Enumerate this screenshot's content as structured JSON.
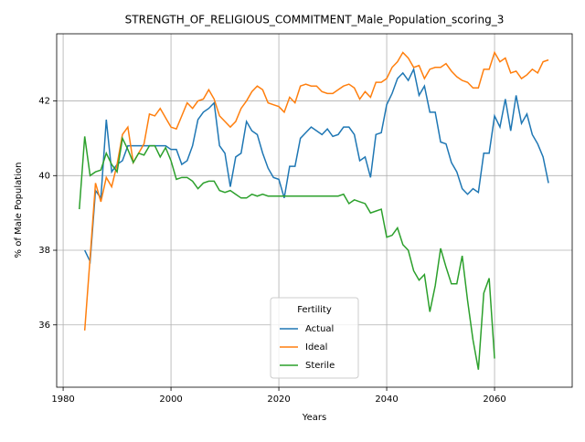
{
  "chart_data": {
    "type": "line",
    "title": "STRENGTH_OF_RELIGIOUS_COMMITMENT_Male_Population_scoring_3",
    "xlabel": "Years",
    "ylabel": "% of Male Population",
    "legend_title": "Fertility",
    "legend": "lower center",
    "grid": true,
    "xlim": [
      1978.8,
      2074.4
    ],
    "xticks": [
      1980,
      2000,
      2020,
      2040,
      2060
    ],
    "ylim": [
      34.33,
      43.8
    ],
    "yticks": [
      36,
      38,
      40,
      42
    ],
    "x": [
      1983,
      1984,
      1985,
      1986,
      1987,
      1988,
      1989,
      1990,
      1991,
      1992,
      1993,
      1994,
      1995,
      1996,
      1997,
      1998,
      1999,
      2000,
      2001,
      2002,
      2003,
      2004,
      2005,
      2006,
      2007,
      2008,
      2009,
      2010,
      2011,
      2012,
      2013,
      2014,
      2015,
      2016,
      2017,
      2018,
      2019,
      2020,
      2021,
      2022,
      2023,
      2024,
      2025,
      2026,
      2027,
      2028,
      2029,
      2030,
      2031,
      2032,
      2033,
      2034,
      2035,
      2036,
      2037,
      2038,
      2039,
      2040,
      2041,
      2042,
      2043,
      2044,
      2045,
      2046,
      2047,
      2048,
      2049,
      2050,
      2051,
      2052,
      2053,
      2054,
      2055,
      2056,
      2057,
      2058,
      2059,
      2060,
      2061,
      2062,
      2063,
      2064,
      2065,
      2066,
      2067,
      2068,
      2069,
      2070
    ],
    "series": [
      {
        "name": "Actual",
        "color": "#1f77b4",
        "values": [
          null,
          38.0,
          37.7,
          39.6,
          39.4,
          41.5,
          40.1,
          40.3,
          40.4,
          40.8,
          40.8,
          40.8,
          40.8,
          40.8,
          40.8,
          40.8,
          40.8,
          40.7,
          40.7,
          40.3,
          40.4,
          40.8,
          41.5,
          41.7,
          41.8,
          41.95,
          40.8,
          40.6,
          39.7,
          40.5,
          40.6,
          41.45,
          41.2,
          41.1,
          40.6,
          40.2,
          39.95,
          39.9,
          39.4,
          40.25,
          40.25,
          41.0,
          41.15,
          41.3,
          41.2,
          41.1,
          41.25,
          41.05,
          41.1,
          41.3,
          41.3,
          41.1,
          40.4,
          40.5,
          39.95,
          41.1,
          41.15,
          41.9,
          42.2,
          42.6,
          42.75,
          42.55,
          42.85,
          42.15,
          42.4,
          41.7,
          41.7,
          40.9,
          40.85,
          40.35,
          40.1,
          39.65,
          39.5,
          39.65,
          39.55,
          40.6,
          40.6,
          41.6,
          41.3,
          42.05,
          41.2,
          42.15,
          41.4,
          41.65,
          41.1,
          40.85,
          40.5,
          39.8
        ]
      },
      {
        "name": "Ideal",
        "color": "#ff7f0e",
        "values": [
          null,
          35.85,
          37.8,
          39.8,
          39.3,
          39.95,
          39.7,
          40.3,
          41.1,
          41.3,
          40.35,
          40.6,
          40.85,
          41.65,
          41.6,
          41.8,
          41.55,
          41.3,
          41.25,
          41.6,
          41.95,
          41.8,
          42.0,
          42.05,
          42.3,
          42.05,
          41.6,
          41.45,
          41.3,
          41.45,
          41.8,
          42.0,
          42.25,
          42.4,
          42.3,
          41.95,
          41.9,
          41.85,
          41.7,
          42.1,
          41.95,
          42.4,
          42.45,
          42.4,
          42.4,
          42.25,
          42.2,
          42.2,
          42.3,
          42.4,
          42.45,
          42.35,
          42.05,
          42.25,
          42.1,
          42.5,
          42.5,
          42.6,
          42.9,
          43.05,
          43.3,
          43.15,
          42.9,
          42.95,
          42.6,
          42.85,
          42.9,
          42.9,
          43.0,
          42.8,
          42.65,
          42.55,
          42.5,
          42.35,
          42.35,
          42.85,
          42.85,
          43.3,
          43.05,
          43.15,
          42.75,
          42.8,
          42.6,
          42.7,
          42.85,
          42.75,
          43.05,
          43.1
        ]
      },
      {
        "name": "Sterile",
        "color": "#2ca02c",
        "values": [
          39.1,
          41.05,
          40.0,
          40.1,
          40.15,
          40.6,
          40.3,
          40.1,
          41.0,
          40.7,
          40.35,
          40.6,
          40.55,
          40.8,
          40.8,
          40.5,
          40.75,
          40.4,
          39.9,
          39.95,
          39.95,
          39.85,
          39.65,
          39.8,
          39.85,
          39.85,
          39.6,
          39.55,
          39.6,
          39.5,
          39.4,
          39.4,
          39.5,
          39.45,
          39.5,
          39.45,
          39.45,
          39.45,
          39.45,
          39.45,
          39.45,
          39.45,
          39.45,
          39.45,
          39.45,
          39.45,
          39.45,
          39.45,
          39.45,
          39.5,
          39.25,
          39.35,
          39.3,
          39.25,
          39.0,
          39.05,
          39.1,
          38.35,
          38.4,
          38.6,
          38.15,
          38.0,
          37.45,
          37.2,
          37.35,
          36.35,
          37.05,
          38.05,
          37.55,
          37.1,
          37.1,
          37.85,
          36.65,
          35.6,
          34.8,
          36.85,
          37.25,
          35.1,
          null,
          null,
          null,
          null,
          null,
          null,
          null,
          null,
          null,
          null
        ]
      }
    ]
  }
}
